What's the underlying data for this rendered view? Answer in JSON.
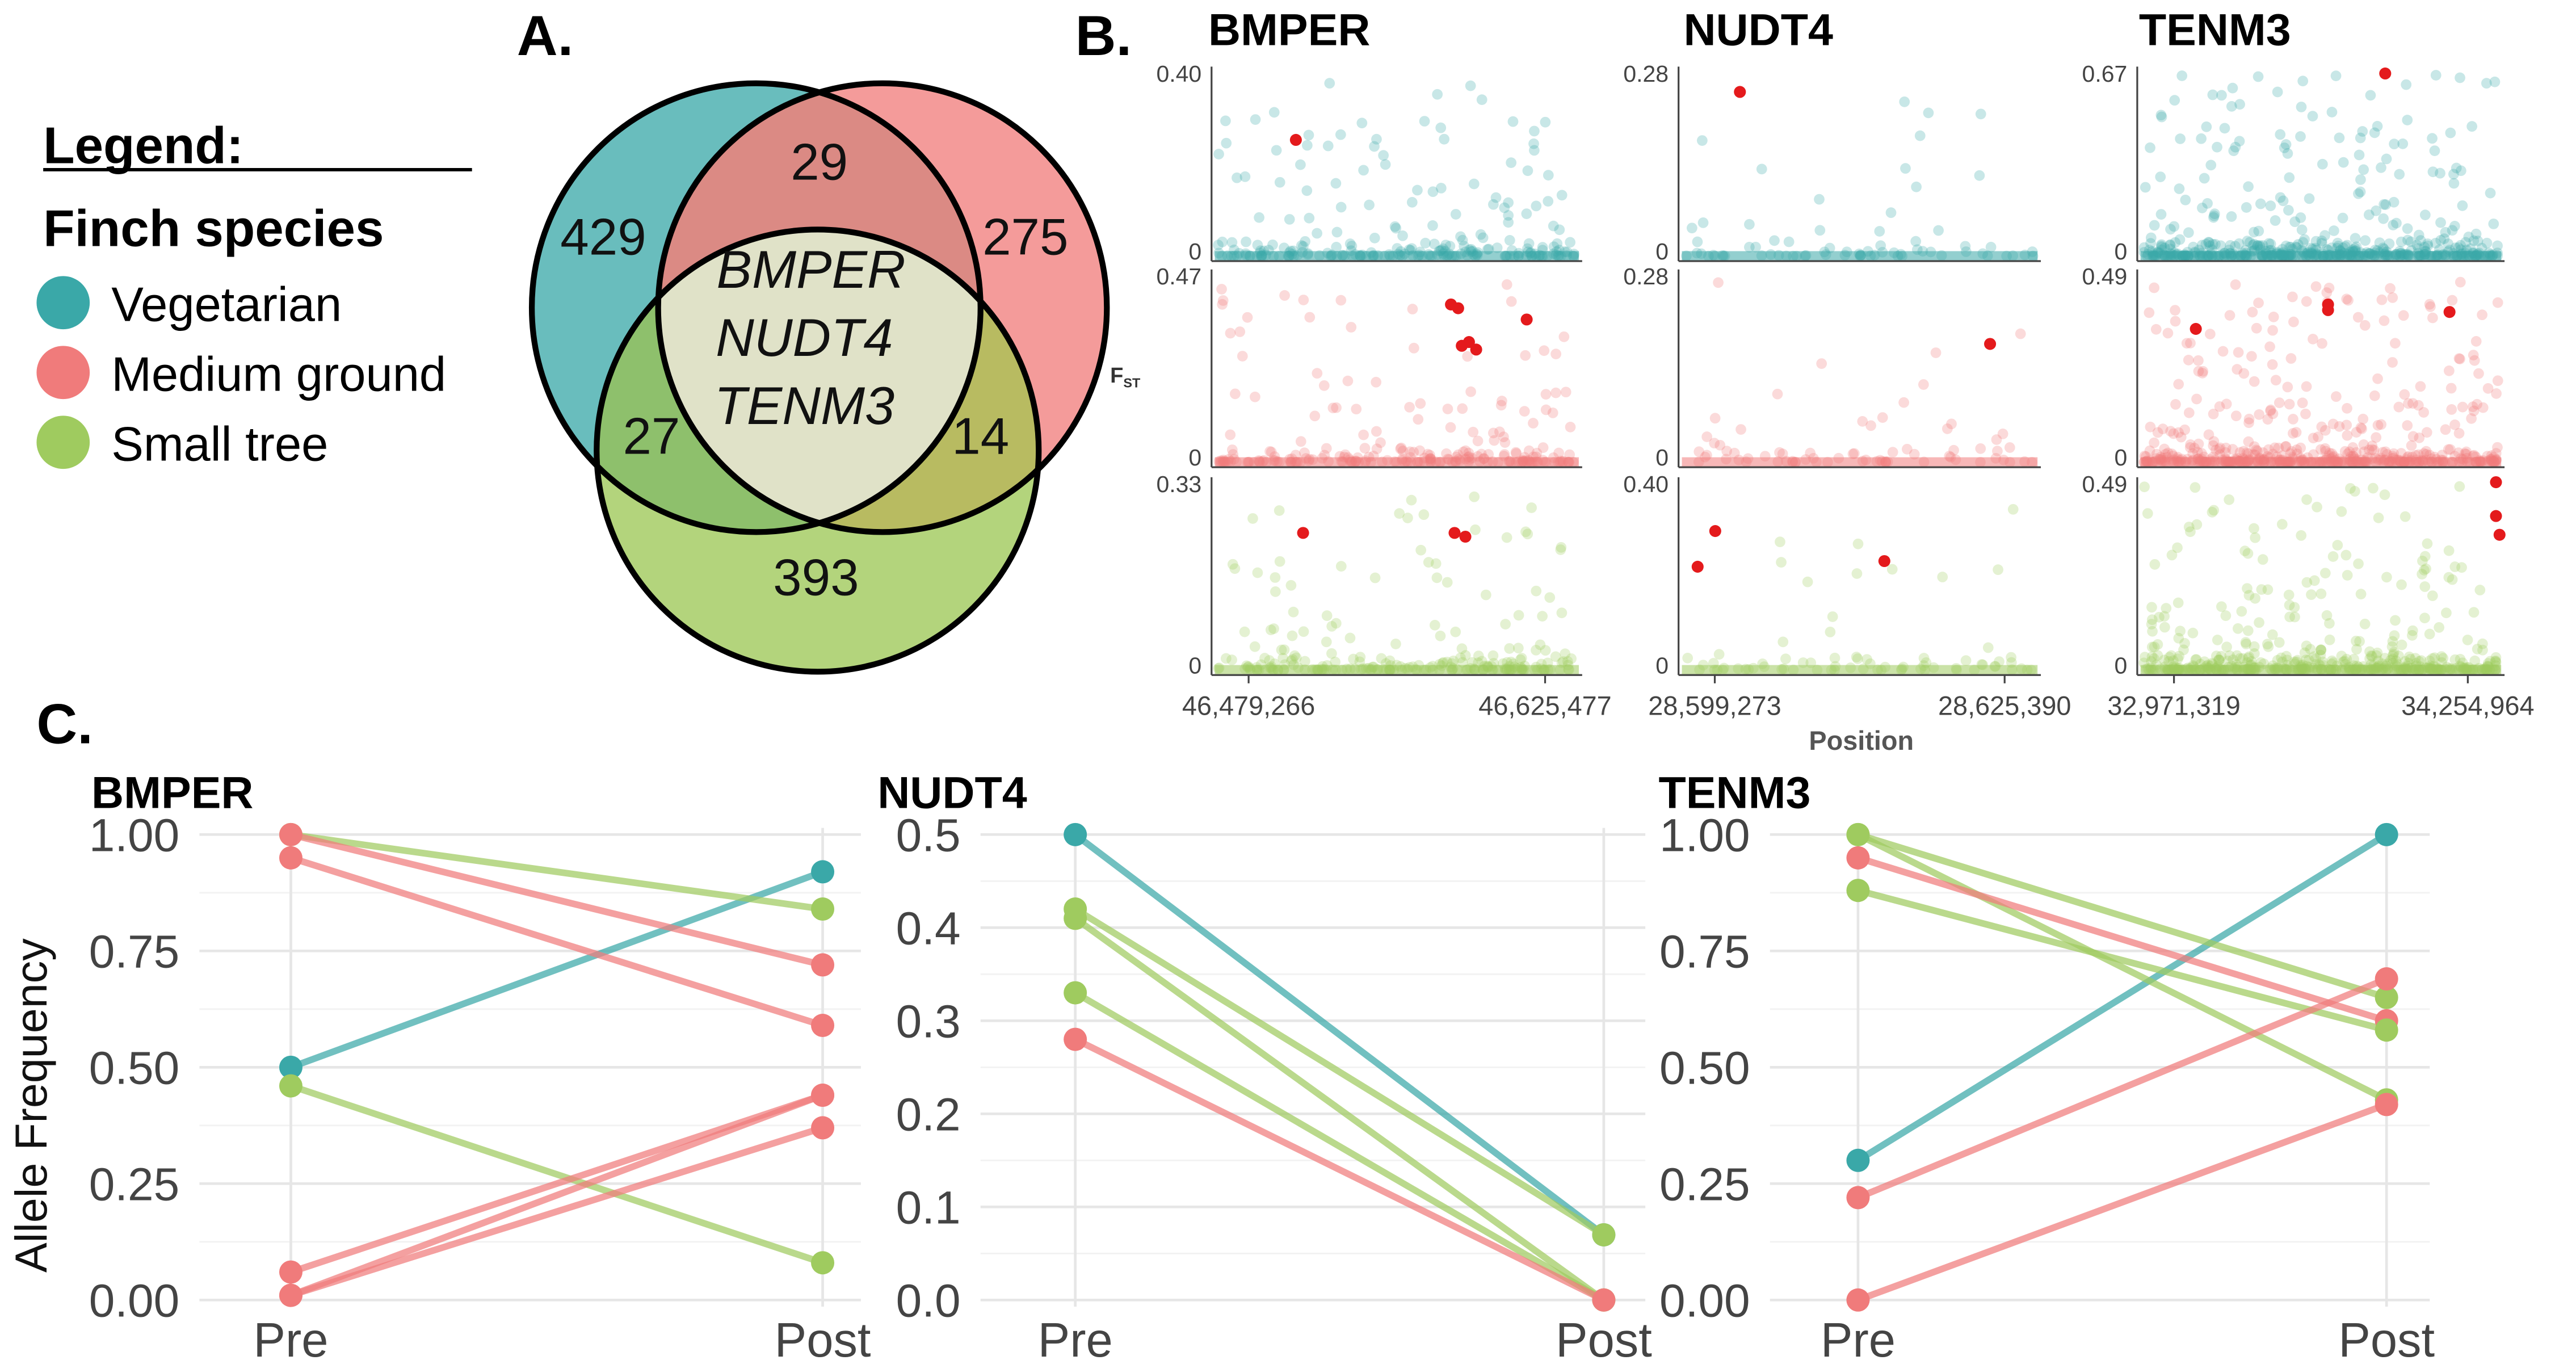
{
  "panel_labels": {
    "a": "A.",
    "b": "B.",
    "c": "C."
  },
  "colors": {
    "vegetarian": "#3aa8a8",
    "medium_ground": "#f07b7b",
    "small_tree": "#9fcb5f",
    "highlight": "#e41a1c"
  },
  "legend": {
    "title": "Legend:",
    "subtitle": "Finch species",
    "items": [
      {
        "label": "Vegetarian",
        "color": "#3aa8a8"
      },
      {
        "label": "Medium ground",
        "color": "#f07b7b"
      },
      {
        "label": "Small tree",
        "color": "#9fcb5f"
      }
    ]
  },
  "venn": {
    "vegetarian_only": "429",
    "veg_medium": "29",
    "medium_only": "275",
    "veg_small": "27",
    "medium_small": "14",
    "small_only": "393",
    "center": [
      "BMPER",
      "NUDT4",
      "TENM3"
    ]
  },
  "chart_data": [
    {
      "type": "scatter",
      "panel": "B",
      "ylabel_main": "F",
      "ylabel_sub": "ST",
      "xlabel": "Position",
      "grid": false,
      "genes": [
        {
          "name": "BMPER",
          "xticks": [
            "46,479,266",
            "46,625,477"
          ],
          "point_density": 1,
          "rows": [
            {
              "species": "Vegetarian",
              "ymax_label": "0.40",
              "ymin_label": "0",
              "highlight": [
                [
                  0.22,
                  0.63
                ]
              ]
            },
            {
              "species": "Medium ground",
              "ymax_label": "0.47",
              "ymin_label": "0",
              "highlight": [
                [
                  0.65,
                  0.84
                ],
                [
                  0.67,
                  0.82
                ],
                [
                  0.7,
                  0.64
                ],
                [
                  0.68,
                  0.62
                ],
                [
                  0.72,
                  0.6
                ],
                [
                  0.86,
                  0.76
                ]
              ]
            },
            {
              "species": "Small tree",
              "ymax_label": "0.33",
              "ymin_label": "0",
              "highlight": [
                [
                  0.24,
                  0.73
                ],
                [
                  0.66,
                  0.73
                ],
                [
                  0.69,
                  0.71
                ]
              ]
            }
          ]
        },
        {
          "name": "NUDT4",
          "xticks": [
            "28,599,273",
            "28,625,390"
          ],
          "point_density": 0.3,
          "rows": [
            {
              "species": "Vegetarian",
              "ymax_label": "0.28",
              "ymin_label": "0",
              "highlight": [
                [
                  0.16,
                  0.89
                ]
              ]
            },
            {
              "species": "Medium ground",
              "ymax_label": "0.28",
              "ymin_label": "0",
              "highlight": [
                [
                  0.87,
                  0.63
                ]
              ]
            },
            {
              "species": "Small tree",
              "ymax_label": "0.40",
              "ymin_label": "0",
              "highlight": [
                [
                  0.04,
                  0.55
                ],
                [
                  0.09,
                  0.74
                ],
                [
                  0.57,
                  0.58
                ]
              ]
            }
          ]
        },
        {
          "name": "TENM3",
          "xticks": [
            "32,971,319",
            "34,254,964"
          ],
          "point_density": 2.2,
          "rows": [
            {
              "species": "Vegetarian",
              "ymax_label": "0.67",
              "ymin_label": "0",
              "highlight": [
                [
                  0.68,
                  0.99
                ]
              ]
            },
            {
              "species": "Medium ground",
              "ymax_label": "0.49",
              "ymin_label": "0",
              "highlight": [
                [
                  0.15,
                  0.71
                ],
                [
                  0.52,
                  0.84
                ],
                [
                  0.52,
                  0.81
                ],
                [
                  0.86,
                  0.8
                ]
              ]
            },
            {
              "species": "Small tree",
              "ymax_label": "0.49",
              "ymin_label": "0",
              "highlight": [
                [
                  0.99,
                  1.0
                ],
                [
                  0.99,
                  0.82
                ],
                [
                  1.0,
                  0.72
                ]
              ]
            }
          ]
        }
      ]
    },
    {
      "type": "line",
      "panel": "C",
      "ylabel": "Allele Frequency",
      "categories": [
        "Pre",
        "Post"
      ],
      "grid": true,
      "charts": [
        {
          "name": "BMPER",
          "ylim": [
            0,
            1
          ],
          "yticks": [
            "0.00",
            "0.25",
            "0.50",
            "0.75",
            "1.00"
          ],
          "ytick_values": [
            0,
            0.25,
            0.5,
            0.75,
            1.0
          ],
          "lines": [
            {
              "species": "Vegetarian",
              "values": [
                0.5,
                0.92
              ]
            },
            {
              "species": "Small tree",
              "values": [
                1.0,
                0.84
              ]
            },
            {
              "species": "Medium ground",
              "values": [
                1.0,
                0.72
              ]
            },
            {
              "species": "Medium ground",
              "values": [
                0.95,
                0.59
              ]
            },
            {
              "species": "Small tree",
              "values": [
                0.46,
                0.08
              ]
            },
            {
              "species": "Medium ground",
              "values": [
                0.06,
                0.44
              ]
            },
            {
              "species": "Medium ground",
              "values": [
                0.01,
                0.37
              ]
            },
            {
              "species": "Medium ground",
              "values": [
                0.01,
                0.44
              ]
            }
          ]
        },
        {
          "name": "NUDT4",
          "ylim": [
            0,
            0.5
          ],
          "yticks": [
            "0.0",
            "0.1",
            "0.2",
            "0.3",
            "0.4",
            "0.5"
          ],
          "ytick_values": [
            0,
            0.1,
            0.2,
            0.3,
            0.4,
            0.5
          ],
          "lines": [
            {
              "species": "Vegetarian",
              "values": [
                0.5,
                0.07
              ]
            },
            {
              "species": "Small tree",
              "values": [
                0.42,
                0.07
              ]
            },
            {
              "species": "Small tree",
              "values": [
                0.41,
                0.0
              ]
            },
            {
              "species": "Small tree",
              "values": [
                0.33,
                0.0
              ]
            },
            {
              "species": "Medium ground",
              "values": [
                0.28,
                0.0
              ]
            }
          ]
        },
        {
          "name": "TENM3",
          "ylim": [
            0,
            1
          ],
          "yticks": [
            "0.00",
            "0.25",
            "0.50",
            "0.75",
            "1.00"
          ],
          "ytick_values": [
            0,
            0.25,
            0.5,
            0.75,
            1.0
          ],
          "lines": [
            {
              "species": "Vegetarian",
              "values": [
                0.3,
                1.0
              ]
            },
            {
              "species": "Small tree",
              "values": [
                1.0,
                0.65
              ]
            },
            {
              "species": "Small tree",
              "values": [
                1.0,
                0.43
              ]
            },
            {
              "species": "Medium ground",
              "values": [
                0.95,
                0.6
              ]
            },
            {
              "species": "Small tree",
              "values": [
                0.88,
                0.58
              ]
            },
            {
              "species": "Medium ground",
              "values": [
                0.22,
                0.69
              ]
            },
            {
              "species": "Medium ground",
              "values": [
                0.0,
                0.42
              ]
            }
          ]
        }
      ]
    }
  ]
}
